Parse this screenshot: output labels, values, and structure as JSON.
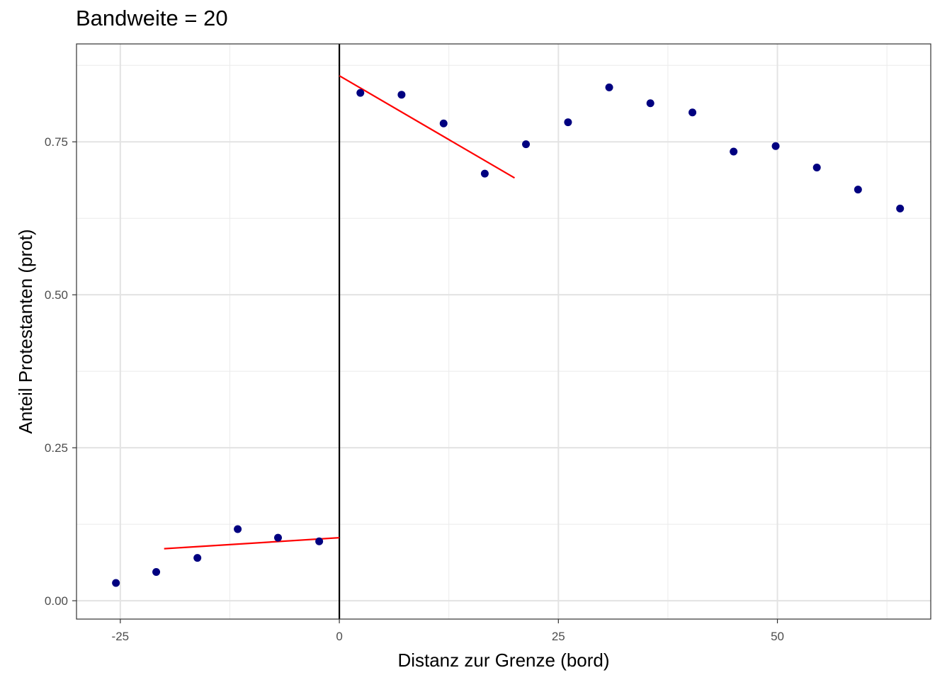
{
  "chart_data": {
    "type": "scatter",
    "title": "Bandweite = 20",
    "xlabel": "Distanz zur Grenze (bord)",
    "ylabel": "Anteil Protestanten  (prot)",
    "xlim": [
      -30,
      67.5
    ],
    "ylim": [
      -0.03,
      0.91
    ],
    "x_ticks": [
      -25,
      0,
      25,
      50
    ],
    "x_tick_labels": [
      "-25",
      "0",
      "25",
      "50"
    ],
    "x_minor_ticks": [
      -12.5,
      12.5,
      37.5,
      62.5
    ],
    "y_ticks": [
      0.0,
      0.25,
      0.5,
      0.75
    ],
    "y_tick_labels": [
      "0.00",
      "0.25",
      "0.50",
      "0.75"
    ],
    "y_minor_ticks": [
      0.125,
      0.375,
      0.625,
      0.875
    ],
    "grid": true,
    "theme": "bw",
    "cutoff_x": 0,
    "points": {
      "color": "#000080",
      "x": [
        -25.5,
        -20.9,
        -16.2,
        -11.6,
        -7.0,
        -2.3,
        2.4,
        7.1,
        11.9,
        16.6,
        21.3,
        26.1,
        30.8,
        35.5,
        40.3,
        45.0,
        49.8,
        54.5,
        59.2,
        64.0
      ],
      "y": [
        0.029,
        0.047,
        0.07,
        0.117,
        0.103,
        0.097,
        0.83,
        0.827,
        0.78,
        0.698,
        0.746,
        0.782,
        0.839,
        0.813,
        0.798,
        0.734,
        0.743,
        0.708,
        0.672,
        0.641
      ]
    },
    "fit_lines": {
      "color": "#ff0000",
      "segments": [
        {
          "x": [
            -20,
            0
          ],
          "y": [
            0.085,
            0.103
          ]
        },
        {
          "x": [
            0,
            20
          ],
          "y": [
            0.858,
            0.691
          ]
        }
      ]
    }
  }
}
